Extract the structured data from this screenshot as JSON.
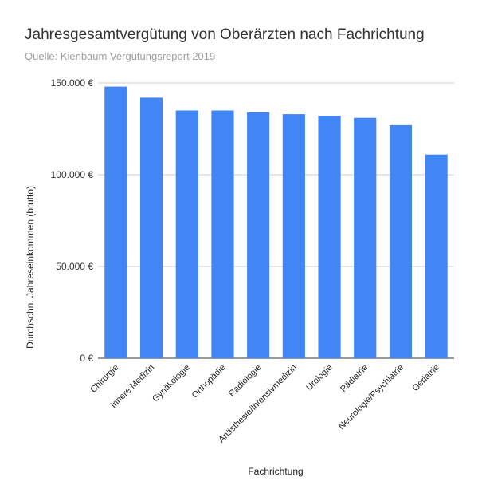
{
  "chart_data": {
    "type": "bar",
    "title": "Jahresgesamtvergütung von Oberärzten nach Fachrichtung",
    "subtitle": "Quelle: Kienbaum Vergütungsreport 2019",
    "xlabel": "Fachrichtung",
    "ylabel": "Durchschn. Jahreseinkommen (brutto)",
    "categories": [
      "Chirurgie",
      "Innere Medizin",
      "Gynäkologie",
      "Orthopädie",
      "Radiologie",
      "Anästhesie/Intensivmedizin",
      "Urologie",
      "Pädiatrie",
      "Neurologie/Psychiatrie",
      "Geriatrie"
    ],
    "values": [
      148000,
      142000,
      135000,
      135000,
      134000,
      133000,
      132000,
      131000,
      127000,
      111000
    ],
    "ylim": [
      0,
      150000
    ],
    "yticks": [
      {
        "value": 0,
        "label": "0 €"
      },
      {
        "value": 50000,
        "label": "50.000 €"
      },
      {
        "value": 100000,
        "label": "100.000 €"
      },
      {
        "value": 150000,
        "label": "150.000 €"
      }
    ],
    "grid": true,
    "bar_color": "#4285f4"
  }
}
